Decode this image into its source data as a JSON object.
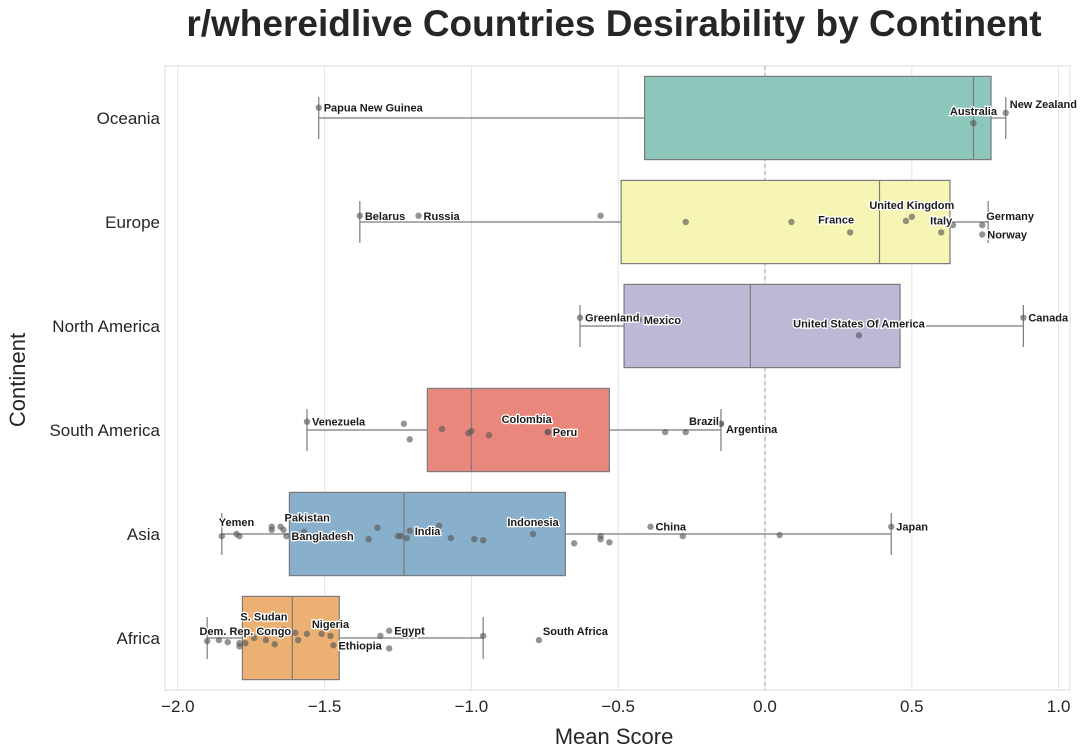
{
  "chart_data": {
    "type": "box",
    "title": "r/whereidlive Countries Desirability by Continent",
    "xlabel": "Mean Score",
    "ylabel": "Continent",
    "xlim": [
      -2.04,
      1.02
    ],
    "xticks": [
      -2.0,
      -1.5,
      -1.0,
      -0.5,
      0.0,
      0.5,
      1.0
    ],
    "xtick_labels": [
      "−2.0",
      "−1.5",
      "−1.0",
      "−0.5",
      "0.0",
      "0.5",
      "1.0"
    ],
    "grid": "vertical",
    "reference_line": {
      "x": 0.0,
      "style": "dashed"
    },
    "categories": [
      "Oceania",
      "Europe",
      "North America",
      "South America",
      "Asia",
      "Africa"
    ],
    "series": [
      {
        "name": "Oceania",
        "color": "#8dc7bb",
        "whisker_low": -1.52,
        "q1": -0.41,
        "median": 0.71,
        "q3": 0.77,
        "whisker_high": 0.82,
        "points": [
          {
            "x": -1.52,
            "dy": -0.1,
            "label": "Papua New Guinea",
            "label_pos": "right"
          },
          {
            "x": 0.71,
            "dy": 0.05,
            "label": "Australia",
            "label_pos": "above"
          },
          {
            "x": 0.82,
            "dy": -0.05,
            "label": "New Zealand",
            "label_pos": "right-above"
          }
        ]
      },
      {
        "name": "Europe",
        "color": "#f7f5b4",
        "whisker_low": -1.38,
        "q1": -0.49,
        "median": 0.39,
        "q3": 0.63,
        "whisker_high": 0.76,
        "points": [
          {
            "x": -1.38,
            "dy": -0.06,
            "label": "Belarus",
            "label_pos": "right"
          },
          {
            "x": -1.18,
            "dy": -0.06,
            "label": "Russia",
            "label_pos": "right"
          },
          {
            "x": -0.56,
            "dy": -0.06
          },
          {
            "x": -0.27,
            "dy": 0.0
          },
          {
            "x": 0.09,
            "dy": 0.0
          },
          {
            "x": 0.29,
            "dy": 0.1,
            "label": "France",
            "label_pos": "above-left"
          },
          {
            "x": 0.48,
            "dy": -0.01
          },
          {
            "x": 0.5,
            "dy": -0.05,
            "label": "United Kingdom",
            "label_pos": "above"
          },
          {
            "x": 0.6,
            "dy": 0.1,
            "label": "Italy",
            "label_pos": "above"
          },
          {
            "x": 0.64,
            "dy": 0.03
          },
          {
            "x": 0.74,
            "dy": 0.03,
            "label": "Germany",
            "label_pos": "right-above"
          },
          {
            "x": 0.74,
            "dy": 0.12,
            "label": "Norway",
            "label_pos": "right"
          }
        ]
      },
      {
        "name": "North America",
        "color": "#bcb9d6",
        "whisker_low": -0.63,
        "q1": -0.48,
        "median": -0.05,
        "q3": 0.46,
        "whisker_high": 0.88,
        "points": [
          {
            "x": -0.63,
            "dy": -0.08,
            "label": "Greenland",
            "label_pos": "right"
          },
          {
            "x": -0.43,
            "dy": -0.06,
            "label": "Mexico",
            "label_pos": "right"
          },
          {
            "x": 0.32,
            "dy": 0.09,
            "label": "United States Of America",
            "label_pos": "above"
          },
          {
            "x": 0.88,
            "dy": -0.08,
            "label": "Canada",
            "label_pos": "right"
          }
        ]
      },
      {
        "name": "South America",
        "color": "#ea877d",
        "whisker_low": -1.56,
        "q1": -1.15,
        "median": -1.0,
        "q3": -0.53,
        "whisker_high": -0.15,
        "points": [
          {
            "x": -1.56,
            "dy": -0.08,
            "label": "Venezuela",
            "label_pos": "right"
          },
          {
            "x": -1.23,
            "dy": -0.06
          },
          {
            "x": -1.21,
            "dy": 0.09
          },
          {
            "x": -1.1,
            "dy": -0.01
          },
          {
            "x": -1.01,
            "dy": 0.03
          },
          {
            "x": -1.0,
            "dy": 0.01
          },
          {
            "x": -0.94,
            "dy": 0.05
          },
          {
            "x": -0.74,
            "dy": 0.02,
            "label": "Colombia",
            "label_pos": "above-left"
          },
          {
            "x": -0.74,
            "dy": 0.02,
            "label": "Peru",
            "label_pos": "right"
          },
          {
            "x": -0.34,
            "dy": 0.02
          },
          {
            "x": -0.27,
            "dy": 0.02
          },
          {
            "x": -0.15,
            "dy": -0.06,
            "label": "Brazil",
            "label_pos": "left"
          },
          {
            "x": -0.15,
            "dy": -0.06,
            "label": "Argentina",
            "label_pos": "right-below"
          }
        ]
      },
      {
        "name": "Asia",
        "color": "#88afcb",
        "whisker_low": -1.85,
        "q1": -1.62,
        "median": -1.23,
        "q3": -0.68,
        "whisker_high": 0.43,
        "points": [
          {
            "x": -1.85,
            "dy": 0.02
          },
          {
            "x": -1.8,
            "dy": 0.0,
            "label": "Yemen",
            "label_pos": "above"
          },
          {
            "x": -1.79,
            "dy": 0.02
          },
          {
            "x": -1.68,
            "dy": -0.07
          },
          {
            "x": -1.68,
            "dy": -0.04
          },
          {
            "x": -1.65,
            "dy": -0.07,
            "label": "Pakistan",
            "label_pos": "right-above"
          },
          {
            "x": -1.64,
            "dy": -0.04
          },
          {
            "x": -1.63,
            "dy": 0.02,
            "label": "Bangladesh",
            "label_pos": "right"
          },
          {
            "x": -1.57,
            "dy": -0.02
          },
          {
            "x": -1.35,
            "dy": 0.05
          },
          {
            "x": -1.32,
            "dy": -0.06
          },
          {
            "x": -1.25,
            "dy": 0.02
          },
          {
            "x": -1.24,
            "dy": 0.02
          },
          {
            "x": -1.22,
            "dy": 0.04
          },
          {
            "x": -1.21,
            "dy": -0.03,
            "label": "India",
            "label_pos": "right"
          },
          {
            "x": -1.11,
            "dy": -0.08
          },
          {
            "x": -1.07,
            "dy": 0.04
          },
          {
            "x": -0.99,
            "dy": 0.05
          },
          {
            "x": -0.96,
            "dy": 0.06
          },
          {
            "x": -0.79,
            "dy": 0.0,
            "label": "Indonesia",
            "label_pos": "above"
          },
          {
            "x": -0.65,
            "dy": 0.09
          },
          {
            "x": -0.56,
            "dy": 0.02
          },
          {
            "x": -0.56,
            "dy": 0.05
          },
          {
            "x": -0.53,
            "dy": 0.08
          },
          {
            "x": -0.39,
            "dy": -0.07,
            "label": "China",
            "label_pos": "right"
          },
          {
            "x": -0.28,
            "dy": 0.02
          },
          {
            "x": 0.05,
            "dy": 0.01
          },
          {
            "x": 0.43,
            "dy": -0.07,
            "label": "Japan",
            "label_pos": "right"
          }
        ]
      },
      {
        "name": "Africa",
        "color": "#ecb073",
        "whisker_low": -1.9,
        "q1": -1.78,
        "median": -1.61,
        "q3": -1.45,
        "whisker_high": -0.96,
        "points": [
          {
            "x": -1.9,
            "dy": 0.03
          },
          {
            "x": -1.86,
            "dy": 0.02
          },
          {
            "x": -1.83,
            "dy": 0.04
          },
          {
            "x": -1.79,
            "dy": 0.05
          },
          {
            "x": -1.79,
            "dy": 0.08
          },
          {
            "x": -1.77,
            "dy": 0.05,
            "label": "Dem. Rep. Congo",
            "label_pos": "above"
          },
          {
            "x": -1.74,
            "dy": 0.0
          },
          {
            "x": -1.72,
            "dy": -0.05
          },
          {
            "x": -1.7,
            "dy": 0.02
          },
          {
            "x": -1.67,
            "dy": 0.06
          },
          {
            "x": -1.64,
            "dy": -0.08,
            "label": "S. Sudan",
            "label_pos": "above-left"
          },
          {
            "x": -1.6,
            "dy": -0.05
          },
          {
            "x": -1.59,
            "dy": 0.02
          },
          {
            "x": -1.56,
            "dy": -0.04
          },
          {
            "x": -1.51,
            "dy": -0.04
          },
          {
            "x": -1.48,
            "dy": -0.02,
            "label": "Nigeria",
            "label_pos": "above"
          },
          {
            "x": -1.47,
            "dy": 0.07,
            "label": "Ethiopia",
            "label_pos": "right"
          },
          {
            "x": -1.31,
            "dy": -0.02
          },
          {
            "x": -1.28,
            "dy": -0.07,
            "label": "Egypt",
            "label_pos": "right"
          },
          {
            "x": -1.28,
            "dy": 0.1
          },
          {
            "x": -0.96,
            "dy": -0.02
          },
          {
            "x": -0.77,
            "dy": 0.02,
            "label": "South Africa",
            "label_pos": "right-above"
          }
        ]
      }
    ]
  }
}
